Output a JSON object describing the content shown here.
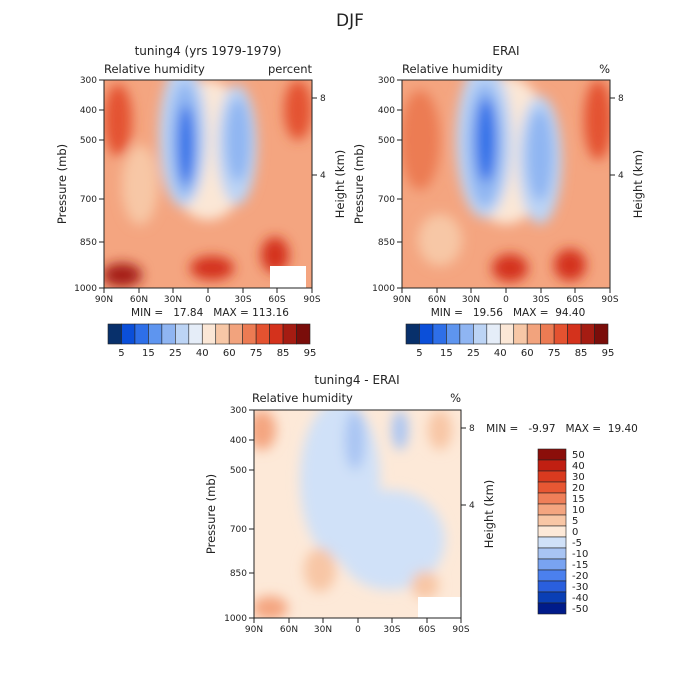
{
  "figure_title": "DJF",
  "colors": {
    "seq": [
      "#08306b",
      "#0b4fd9",
      "#2e6fe8",
      "#5e95ef",
      "#8fb5f2",
      "#bcd4f5",
      "#e5edf8",
      "#fbe7d6",
      "#f7c7a6",
      "#f2a37d",
      "#ec7b53",
      "#e45230",
      "#d4321c",
      "#a51c12",
      "#7a0d0a"
    ],
    "div": [
      "#001b8a",
      "#0a3fb5",
      "#2a5fdd",
      "#4b80ee",
      "#79a3f1",
      "#a8c4f3",
      "#d0e1f8",
      "#fde9d8",
      "#f8c6a5",
      "#f4a580",
      "#ef7f59",
      "#e85733",
      "#d93a1f",
      "#c01f12",
      "#8b0e0a"
    ]
  },
  "chart_data": [
    {
      "type": "heatmap",
      "title": "tuning4 (yrs 1979-1979)",
      "subtitle_left": "Relative humidity",
      "subtitle_right": "percent",
      "xlabel": "",
      "ylabel": "Pressure (mb)",
      "ylabel_right": "Height (km)",
      "x_ticks": [
        "90N",
        "60N",
        "30N",
        "0",
        "30S",
        "60S",
        "90S"
      ],
      "y_ticks": [
        "300",
        "400",
        "500",
        "700",
        "850",
        "1000"
      ],
      "y_ticks_right": [
        "8",
        "4"
      ],
      "ylim": [
        1000,
        300
      ],
      "min_text": "MIN =   17.84   MAX = 113.16",
      "min": 17.84,
      "max": 113.16,
      "colorbar_levels": [
        "5",
        "15",
        "25",
        "40",
        "60",
        "75",
        "85",
        "95"
      ]
    },
    {
      "type": "heatmap",
      "title": "ERAI",
      "subtitle_left": "Relative humidity",
      "subtitle_right": "%",
      "xlabel": "",
      "ylabel": "Pressure (mb)",
      "ylabel_right": "Height (km)",
      "x_ticks": [
        "90N",
        "60N",
        "30N",
        "0",
        "30S",
        "60S",
        "90S"
      ],
      "y_ticks": [
        "300",
        "400",
        "500",
        "700",
        "850",
        "1000"
      ],
      "y_ticks_right": [
        "8",
        "4"
      ],
      "ylim": [
        1000,
        300
      ],
      "min_text": "MIN =   19.56   MAX =  94.40",
      "min": 19.56,
      "max": 94.4,
      "colorbar_levels": [
        "5",
        "15",
        "25",
        "40",
        "60",
        "75",
        "85",
        "95"
      ]
    },
    {
      "type": "heatmap",
      "title": "tuning4 - ERAI",
      "subtitle_left": "Relative humidity",
      "subtitle_right": "%",
      "xlabel": "",
      "ylabel": "Pressure (mb)",
      "ylabel_right": "Height (km)",
      "x_ticks": [
        "90N",
        "60N",
        "30N",
        "0",
        "30S",
        "60S",
        "90S"
      ],
      "y_ticks": [
        "300",
        "400",
        "500",
        "700",
        "850",
        "1000"
      ],
      "y_ticks_right": [
        "8",
        "4"
      ],
      "ylim": [
        1000,
        300
      ],
      "min_text": "MIN =   -9.97   MAX =  19.40",
      "min": -9.97,
      "max": 19.4,
      "colorbar_levels": [
        "50",
        "40",
        "30",
        "20",
        "15",
        "10",
        "5",
        "0",
        "-5",
        "-10",
        "-15",
        "-20",
        "-30",
        "-40",
        "-50"
      ]
    }
  ]
}
